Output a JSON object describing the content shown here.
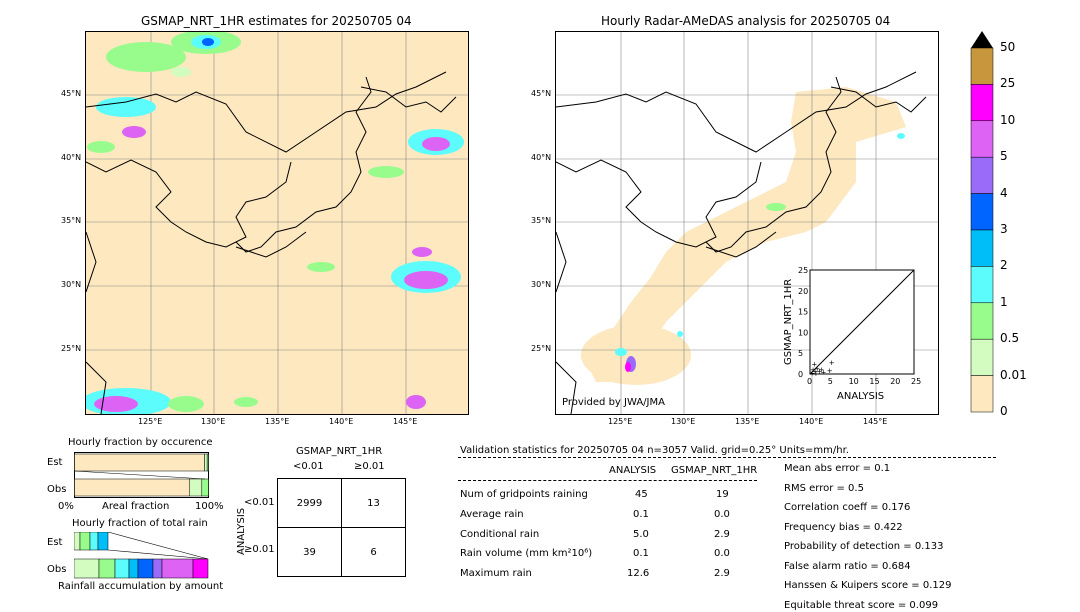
{
  "left_map": {
    "title": "GSMAP_NRT_1HR estimates for 20250705 04",
    "lat_labels": [
      "45°N",
      "40°N",
      "35°N",
      "30°N",
      "25°N"
    ],
    "lon_labels": [
      "125°E",
      "130°E",
      "135°E",
      "140°E",
      "145°E"
    ]
  },
  "right_map": {
    "title": "Hourly Radar-AMeDAS analysis for 20250705 04",
    "lat_labels": [
      "45°N",
      "40°N",
      "35°N",
      "30°N",
      "25°N"
    ],
    "lon_labels": [
      "125°E",
      "130°E",
      "135°E",
      "140°E",
      "145°E"
    ],
    "credit": "Provided by JWA/JMA"
  },
  "colorbar": {
    "labels": [
      "50",
      "25",
      "10",
      "5",
      "4",
      "3",
      "2",
      "1",
      "0.5",
      "0.01",
      "0"
    ],
    "colors": [
      "#c8963c",
      "#ff00ff",
      "#dd63f5",
      "#9a6af8",
      "#0064ff",
      "#00bef8",
      "#5cfcfc",
      "#98fc8c",
      "#d3fcc0",
      "#fde8c0"
    ]
  },
  "scatter": {
    "xlabel": "ANALYSIS",
    "ylabel": "GSMAP_NRT_1HR",
    "xticks": [
      "0",
      "5",
      "10",
      "15",
      "20",
      "25"
    ],
    "yticks": [
      "0",
      "5",
      "10",
      "15",
      "20",
      "25"
    ]
  },
  "chart_data": [
    {
      "type": "scatter",
      "xlabel": "ANALYSIS",
      "ylabel": "GSMAP_NRT_1HR",
      "xlim": [
        0,
        25
      ],
      "ylim": [
        0,
        25
      ],
      "points": [
        [
          0.3,
          0.4
        ],
        [
          0.5,
          1.2
        ],
        [
          1.0,
          0.8
        ],
        [
          1.5,
          1.5
        ],
        [
          2.0,
          0.9
        ],
        [
          2.5,
          1.2
        ],
        [
          3.0,
          0.6
        ],
        [
          4.5,
          1.0
        ],
        [
          5.0,
          2.9
        ],
        [
          0.8,
          2.5
        ],
        [
          1.2,
          0.3
        ]
      ]
    },
    {
      "type": "bar",
      "title": "Hourly fraction by occurence",
      "categories": [
        "Est",
        "Obs"
      ],
      "series": [
        {
          "name": "0",
          "values": [
            0.97,
            0.86
          ]
        },
        {
          "name": "0.01",
          "values": [
            0.02,
            0.09
          ]
        },
        {
          "name": "0.5",
          "values": [
            0.01,
            0.05
          ]
        }
      ]
    },
    {
      "type": "bar",
      "title": "Hourly fraction of total rain",
      "categories": [
        "Est",
        "Obs"
      ]
    }
  ],
  "occurrence": {
    "title": "Hourly fraction by occurence",
    "est_label": "Est",
    "obs_label": "Obs",
    "x_left": "0%",
    "x_mid": "Areal fraction",
    "x_right": "100%"
  },
  "total_rain": {
    "title": "Hourly fraction of total rain",
    "est_label": "Est",
    "obs_label": "Obs",
    "xlabel": "Rainfall accumulation by amount"
  },
  "contingency": {
    "col_header": "GSMAP_NRT_1HR",
    "col_lt": "<0.01",
    "col_ge": "≥0.01",
    "row_header": "ANALYSIS",
    "row_lt": "<0.01",
    "row_ge": "≥0.01",
    "cells": [
      "2999",
      "13",
      "39",
      "6"
    ]
  },
  "validation": {
    "header": "Validation statistics for 20250705 04  n=3057 Valid. grid=0.25° Units=mm/hr.",
    "col_analysis": "ANALYSIS",
    "col_gsmap": "GSMAP_NRT_1HR",
    "rows": [
      {
        "label": "Num of gridpoints raining",
        "analysis": "45",
        "gsmap": "19"
      },
      {
        "label": "Average rain",
        "analysis": "0.1",
        "gsmap": "0.0"
      },
      {
        "label": "Conditional rain",
        "analysis": "5.0",
        "gsmap": "2.9"
      },
      {
        "label": "Rain volume (mm km²10⁶)",
        "analysis": "0.1",
        "gsmap": "0.0"
      },
      {
        "label": "Maximum rain",
        "analysis": "12.6",
        "gsmap": "2.9"
      }
    ],
    "scores": [
      "Mean abs error =    0.1",
      "RMS error =    0.5",
      "Correlation coeff =  0.176",
      "Frequency bias =  0.422",
      "Probability of detection =  0.133",
      "False alarm ratio =  0.684",
      "Hanssen & Kuipers score =  0.129",
      "Equitable threat score =  0.099"
    ]
  }
}
